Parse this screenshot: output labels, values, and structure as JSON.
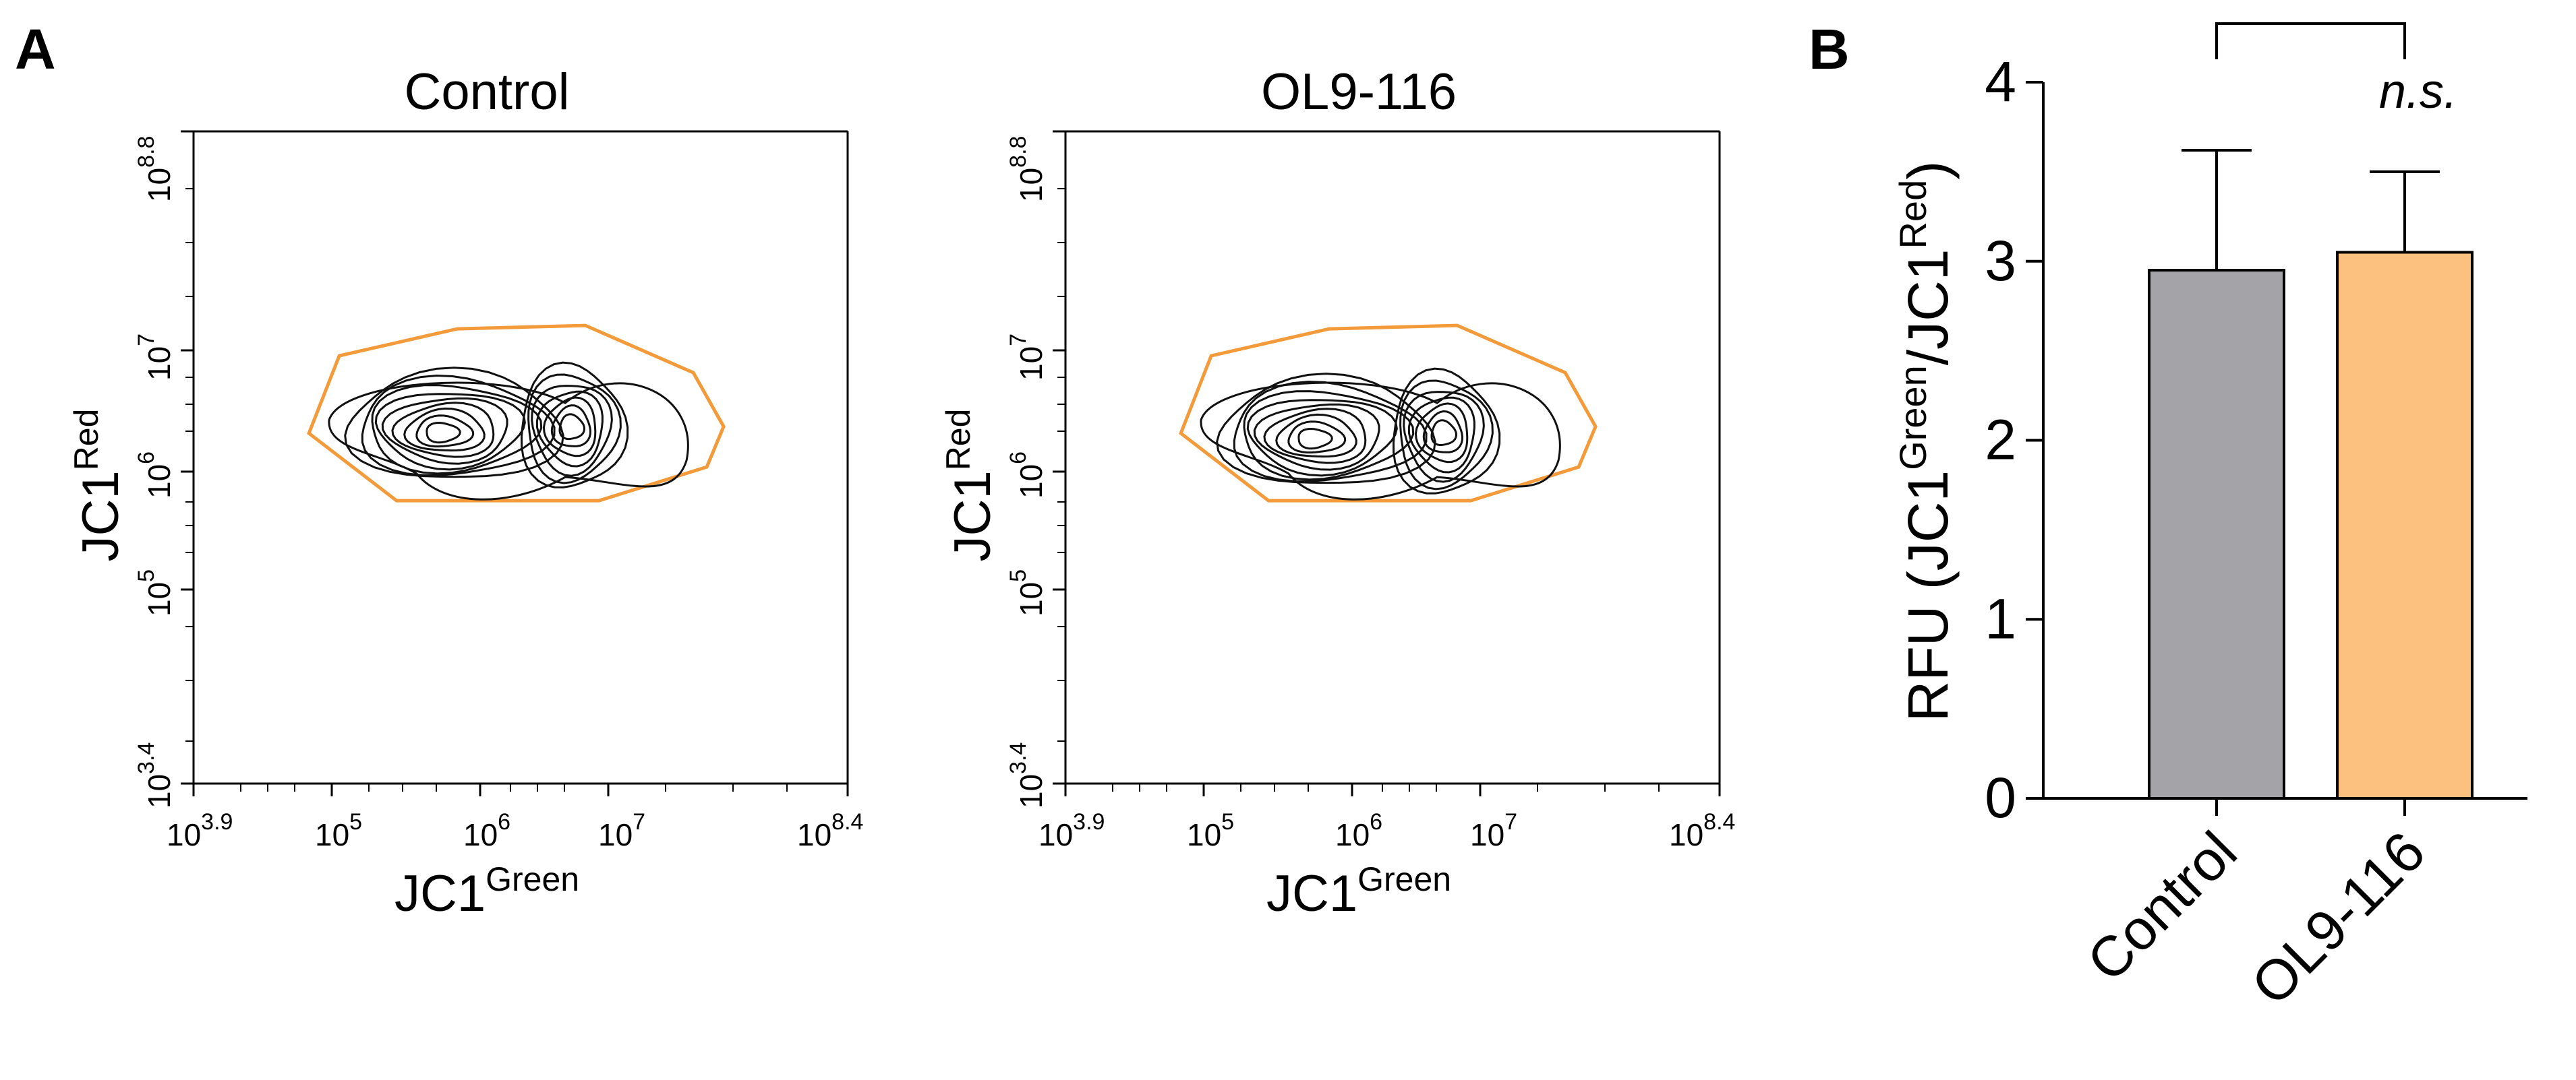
{
  "panel_a": {
    "letter": "A",
    "plots": [
      {
        "title": "Control"
      },
      {
        "title": "OL9-116"
      }
    ],
    "x_axis": {
      "label_base": "JC1",
      "label_sup": "Green",
      "ticks": [
        {
          "base": "10",
          "exp": "3.9"
        },
        {
          "base": "10",
          "exp": "5"
        },
        {
          "base": "10",
          "exp": "6"
        },
        {
          "base": "10",
          "exp": "7"
        },
        {
          "base": "10",
          "exp": "8.4"
        }
      ]
    },
    "y_axis": {
      "label_base": "JC1",
      "label_sup": "Red",
      "ticks": [
        {
          "base": "10",
          "exp": "3.4"
        },
        {
          "base": "10",
          "exp": "5"
        },
        {
          "base": "10",
          "exp": "6"
        },
        {
          "base": "10",
          "exp": "7"
        },
        {
          "base": "10",
          "exp": "8.8"
        }
      ]
    },
    "colors": {
      "gate": "#f39a3a",
      "contour": "#111111",
      "axis": "#000000"
    }
  },
  "panel_b": {
    "letter": "B",
    "significance": "n.s.",
    "colors": {
      "control_bar": "#a3a3a8",
      "ol9_bar": "#fcc17e",
      "outline": "#000000"
    }
  },
  "chart_data": [
    {
      "type": "contour",
      "title": "Control",
      "xlabel": "JC1Green",
      "ylabel": "JC1Red",
      "x_scale": "log",
      "y_scale": "log",
      "xlim_log10": [
        3.9,
        8.4
      ],
      "ylim_log10": [
        3.4,
        8.8
      ],
      "populations": [
        {
          "x_log10": 5.6,
          "y_log10": 6.3
        },
        {
          "x_log10": 6.5,
          "y_log10": 6.35
        }
      ]
    },
    {
      "type": "contour",
      "title": "OL9-116",
      "xlabel": "JC1Green",
      "ylabel": "JC1Red",
      "x_scale": "log",
      "y_scale": "log",
      "xlim_log10": [
        3.9,
        8.4
      ],
      "ylim_log10": [
        3.4,
        8.8
      ],
      "populations": [
        {
          "x_log10": 5.6,
          "y_log10": 6.25
        },
        {
          "x_log10": 6.5,
          "y_log10": 6.3
        }
      ]
    },
    {
      "type": "bar",
      "categories": [
        "Control",
        "OL9-116"
      ],
      "values": [
        2.95,
        3.05
      ],
      "errors": [
        0.67,
        0.45
      ],
      "ylabel_parts": [
        "RFU (JC1",
        "Green",
        "/JC1",
        "Red",
        ")"
      ],
      "ylim": [
        0,
        4
      ],
      "yticks": [
        0,
        1,
        2,
        3,
        4
      ],
      "significance": "n.s."
    }
  ]
}
